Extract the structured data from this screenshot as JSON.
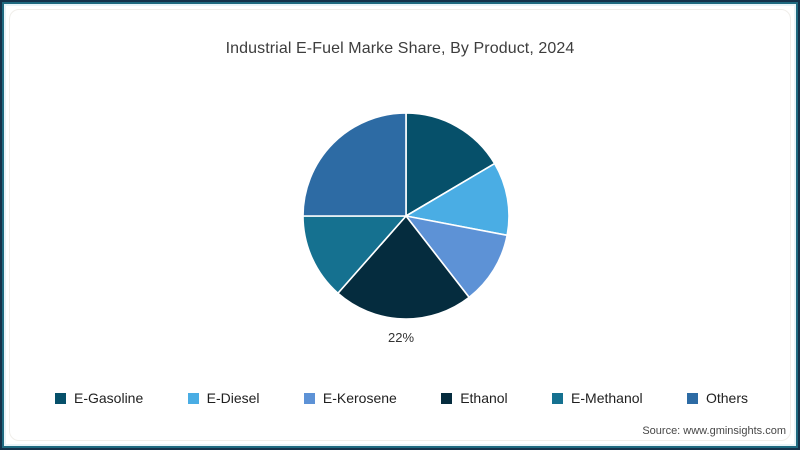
{
  "page": {
    "source": "Source: www.gminsights.com"
  },
  "chart_data": {
    "type": "pie",
    "title": "Industrial E-Fuel Marke Share, By Product, 2024",
    "start_angle_deg": 0,
    "direction": "clockwise",
    "legend_position": "bottom",
    "divider_color": "#ffffff",
    "slices": [
      {
        "label": "E-Gasoline",
        "value": 16.5,
        "color": "#06506a"
      },
      {
        "label": "E-Diesel",
        "value": 11.5,
        "color": "#4aade4"
      },
      {
        "label": "E-Kerosene",
        "value": 11.5,
        "color": "#5d92d6"
      },
      {
        "label": "Ethanol",
        "value": 22,
        "color": "#052c3e"
      },
      {
        "label": "E-Methanol",
        "value": 13.5,
        "color": "#157190"
      },
      {
        "label": "Others",
        "value": 25,
        "color": "#2d6ba4"
      }
    ],
    "data_labels": [
      {
        "slice": "Ethanol",
        "text": "22%",
        "position": "outside-bottom"
      }
    ]
  }
}
